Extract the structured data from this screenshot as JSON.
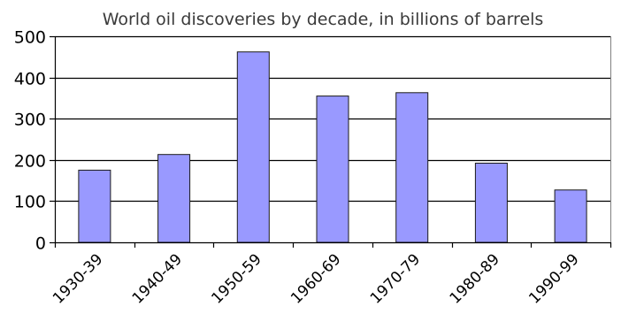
{
  "chart_data": {
    "type": "bar",
    "title": "World oil discoveries by decade, in billions of barrels",
    "xlabel": "",
    "ylabel": "",
    "categories": [
      "1930-39",
      "1940-49",
      "1950-59",
      "1960-69",
      "1970-79",
      "1980-89",
      "1990-99"
    ],
    "values": [
      175,
      213,
      462,
      355,
      363,
      192,
      127
    ],
    "ylim": [
      0,
      500
    ],
    "yticks": [
      "0",
      "100",
      "200",
      "300",
      "400",
      "500"
    ],
    "grid": true,
    "legend": "none",
    "colors": {
      "bar_fill": "#9999ff",
      "bar_stroke": "#1a1a1a",
      "grid": "#000000",
      "axis": "#000000"
    }
  }
}
